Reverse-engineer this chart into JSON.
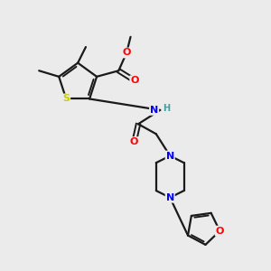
{
  "background_color": "#ebebeb",
  "bond_color": "#1a1a1a",
  "atom_colors": {
    "N": "#0000ff",
    "O": "#ff0000",
    "S": "#cccc00",
    "H": "#40a0a0",
    "C": "#1a1a1a"
  },
  "figsize": [
    3.0,
    3.0
  ],
  "dpi": 100
}
